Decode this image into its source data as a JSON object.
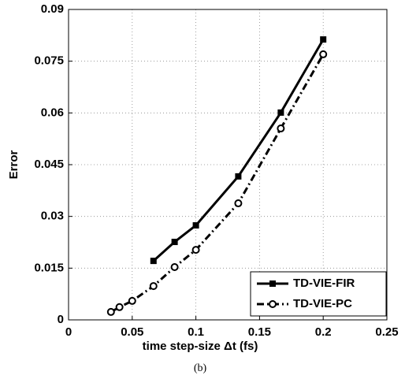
{
  "chart_data": {
    "type": "line",
    "x_label": "time step-size  Δt (fs)",
    "y_label": "Error",
    "caption": "(b)",
    "series": [
      {
        "name": "TD-VIE-FIR",
        "color": "#000000",
        "line_style": "solid",
        "marker": "square",
        "x": [
          0.0667,
          0.0833,
          0.1,
          0.1333,
          0.1667,
          0.2
        ],
        "values": [
          0.0171,
          0.0226,
          0.0274,
          0.0416,
          0.0601,
          0.0813
        ]
      },
      {
        "name": "TD-VIE-PC",
        "color": "#000000",
        "line_style": "dashdot",
        "marker": "circle",
        "x": [
          0.0333,
          0.04,
          0.05,
          0.0667,
          0.0833,
          0.1,
          0.1333,
          0.1667,
          0.2
        ],
        "values": [
          0.0023,
          0.0037,
          0.0055,
          0.0098,
          0.0153,
          0.0203,
          0.0338,
          0.0555,
          0.077
        ]
      }
    ],
    "xlim": [
      0,
      0.25
    ],
    "xticks": [
      0,
      0.05,
      0.1,
      0.15,
      0.2,
      0.25
    ],
    "ylim": [
      0,
      0.09
    ],
    "yticks": [
      0,
      0.015,
      0.03,
      0.045,
      0.06,
      0.075,
      0.09
    ],
    "grid": true,
    "legend": "lower right"
  }
}
